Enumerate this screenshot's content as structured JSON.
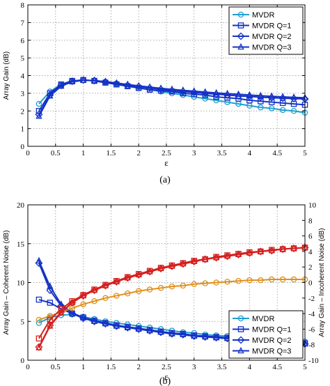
{
  "chart_data": [
    {
      "type": "line",
      "caption": "(a)",
      "xlabel": "ε",
      "ylabel": "Array Gain (dB)",
      "xlim": [
        0,
        5
      ],
      "ylim": [
        0,
        8
      ],
      "xticks": [
        "0",
        "0.5",
        "1",
        "1.5",
        "2",
        "2.5",
        "3",
        "3.5",
        "4",
        "4.5",
        "5"
      ],
      "yticks": [
        "0",
        "1",
        "2",
        "3",
        "4",
        "5",
        "6",
        "7",
        "8"
      ],
      "grid": true,
      "legend_position": "top-right",
      "x": [
        0.2,
        0.4,
        0.6,
        0.8,
        1.0,
        1.2,
        1.4,
        1.6,
        1.8,
        2.0,
        2.2,
        2.4,
        2.6,
        2.8,
        3.0,
        3.2,
        3.4,
        3.6,
        3.8,
        4.0,
        4.2,
        4.4,
        4.6,
        4.8,
        5.0
      ],
      "series": [
        {
          "name": "MVDR",
          "marker": "circle",
          "color": "#1f9fd0",
          "values": [
            2.4,
            3.1,
            3.5,
            3.7,
            3.75,
            3.7,
            3.6,
            3.5,
            3.4,
            3.3,
            3.2,
            3.1,
            3.0,
            2.9,
            2.8,
            2.7,
            2.6,
            2.5,
            2.4,
            2.3,
            2.2,
            2.15,
            2.05,
            2.0,
            1.9
          ]
        },
        {
          "name": "MVDR Q=1",
          "marker": "square",
          "color": "#1532c6",
          "values": [
            2.0,
            3.0,
            3.5,
            3.7,
            3.75,
            3.7,
            3.6,
            3.5,
            3.4,
            3.3,
            3.2,
            3.15,
            3.1,
            3.0,
            2.95,
            2.9,
            2.8,
            2.75,
            2.7,
            2.6,
            2.55,
            2.5,
            2.45,
            2.4,
            2.35
          ]
        },
        {
          "name": "MVDR Q=2",
          "marker": "diamond",
          "color": "#1532c6",
          "values": [
            1.8,
            2.9,
            3.45,
            3.68,
            3.75,
            3.72,
            3.65,
            3.55,
            3.45,
            3.38,
            3.3,
            3.22,
            3.15,
            3.1,
            3.05,
            3.0,
            2.95,
            2.9,
            2.85,
            2.82,
            2.78,
            2.75,
            2.72,
            2.7,
            2.68
          ]
        },
        {
          "name": "MVDR Q=3",
          "marker": "triangle",
          "color": "#1532c6",
          "values": [
            1.7,
            2.85,
            3.4,
            3.65,
            3.73,
            3.72,
            3.66,
            3.58,
            3.5,
            3.42,
            3.35,
            3.28,
            3.22,
            3.17,
            3.12,
            3.07,
            3.02,
            2.98,
            2.94,
            2.9,
            2.86,
            2.83,
            2.8,
            2.77,
            2.75
          ]
        }
      ]
    },
    {
      "type": "line",
      "caption": "(b)",
      "xlabel": "ε",
      "ylabel": "Array Gain – Coherent Noise (dB)",
      "ylabel_right": "Array Gain – Incoherent Noise (dB)",
      "xlim": [
        0,
        5
      ],
      "ylim": [
        0,
        20
      ],
      "ylim_right": [
        -10,
        10
      ],
      "xticks": [
        "0",
        "0.5",
        "1",
        "1.5",
        "2",
        "2.5",
        "3",
        "3.5",
        "4",
        "4.5",
        "5"
      ],
      "yticks": [
        "0",
        "5",
        "10",
        "15",
        "20"
      ],
      "yticks_right": [
        "-10",
        "-8",
        "-6",
        "-4",
        "-2",
        "0",
        "2",
        "4",
        "6",
        "8",
        "10"
      ],
      "grid": true,
      "legend_position": "bottom-right",
      "x": [
        0.2,
        0.4,
        0.6,
        0.8,
        1.0,
        1.2,
        1.4,
        1.6,
        1.8,
        2.0,
        2.2,
        2.4,
        2.6,
        2.8,
        3.0,
        3.2,
        3.4,
        3.6,
        3.8,
        4.0,
        4.2,
        4.4,
        4.6,
        4.8,
        5.0
      ],
      "series": [
        {
          "name": "MVDR",
          "axis": "left",
          "marker": "circle",
          "color": "#1f9fd0",
          "values": [
            4.8,
            5.5,
            5.8,
            5.9,
            5.6,
            5.3,
            5.0,
            4.8,
            4.6,
            4.4,
            4.2,
            4.0,
            3.8,
            3.6,
            3.5,
            3.3,
            3.2,
            3.1,
            3.0,
            2.9,
            2.8,
            2.7,
            2.6,
            2.5,
            2.4
          ]
        },
        {
          "name": "MVDR Q=1",
          "axis": "left",
          "marker": "square",
          "color": "#1532c6",
          "values": [
            7.8,
            7.4,
            6.6,
            6.0,
            5.5,
            5.1,
            4.8,
            4.5,
            4.3,
            4.1,
            3.9,
            3.7,
            3.5,
            3.4,
            3.2,
            3.1,
            3.0,
            2.9,
            2.8,
            2.7,
            2.6,
            2.5,
            2.4,
            2.3,
            2.2
          ]
        },
        {
          "name": "MVDR Q=2",
          "axis": "left",
          "marker": "diamond",
          "color": "#1532c6",
          "values": [
            12.5,
            9.0,
            7.0,
            6.0,
            5.4,
            5.0,
            4.7,
            4.4,
            4.2,
            4.0,
            3.8,
            3.6,
            3.4,
            3.3,
            3.1,
            3.0,
            2.9,
            2.8,
            2.7,
            2.6,
            2.5,
            2.4,
            2.3,
            2.2,
            2.1
          ]
        },
        {
          "name": "MVDR Q=3",
          "axis": "left",
          "marker": "triangle",
          "color": "#1532c6",
          "values": [
            12.8,
            9.5,
            7.2,
            6.1,
            5.5,
            5.0,
            4.7,
            4.4,
            4.2,
            4.0,
            3.8,
            3.6,
            3.4,
            3.3,
            3.1,
            3.0,
            2.9,
            2.8,
            2.7,
            2.6,
            2.5,
            2.4,
            2.3,
            2.2,
            2.1
          ]
        },
        {
          "axis": "right",
          "marker": "circle",
          "color": "#e0901a",
          "values": [
            -4.8,
            -4.3,
            -3.8,
            -3.3,
            -2.8,
            -2.4,
            -2.0,
            -1.7,
            -1.4,
            -1.1,
            -0.9,
            -0.7,
            -0.5,
            -0.4,
            -0.2,
            -0.1,
            0.0,
            0.1,
            0.2,
            0.3,
            0.3,
            0.4,
            0.4,
            0.4,
            0.4
          ]
        },
        {
          "axis": "right",
          "marker": "square",
          "color": "#d42020",
          "values": [
            -7.2,
            -4.8,
            -3.4,
            -2.4,
            -1.6,
            -0.9,
            -0.3,
            0.2,
            0.7,
            1.1,
            1.5,
            1.9,
            2.2,
            2.5,
            2.8,
            3.0,
            3.3,
            3.5,
            3.7,
            3.9,
            4.0,
            4.2,
            4.3,
            4.4,
            4.5
          ]
        },
        {
          "axis": "right",
          "marker": "diamond",
          "color": "#d42020",
          "values": [
            -8.3,
            -5.5,
            -3.8,
            -2.6,
            -1.7,
            -1.0,
            -0.4,
            0.1,
            0.6,
            1.0,
            1.4,
            1.8,
            2.1,
            2.4,
            2.7,
            3.0,
            3.2,
            3.4,
            3.6,
            3.8,
            4.0,
            4.1,
            4.3,
            4.4,
            4.5
          ]
        },
        {
          "axis": "right",
          "marker": "triangle",
          "color": "#d42020",
          "values": [
            -8.4,
            -5.6,
            -3.9,
            -2.6,
            -1.7,
            -1.0,
            -0.4,
            0.1,
            0.6,
            1.0,
            1.4,
            1.8,
            2.1,
            2.4,
            2.7,
            3.0,
            3.2,
            3.4,
            3.6,
            3.8,
            4.0,
            4.1,
            4.3,
            4.4,
            4.5
          ]
        }
      ]
    }
  ]
}
